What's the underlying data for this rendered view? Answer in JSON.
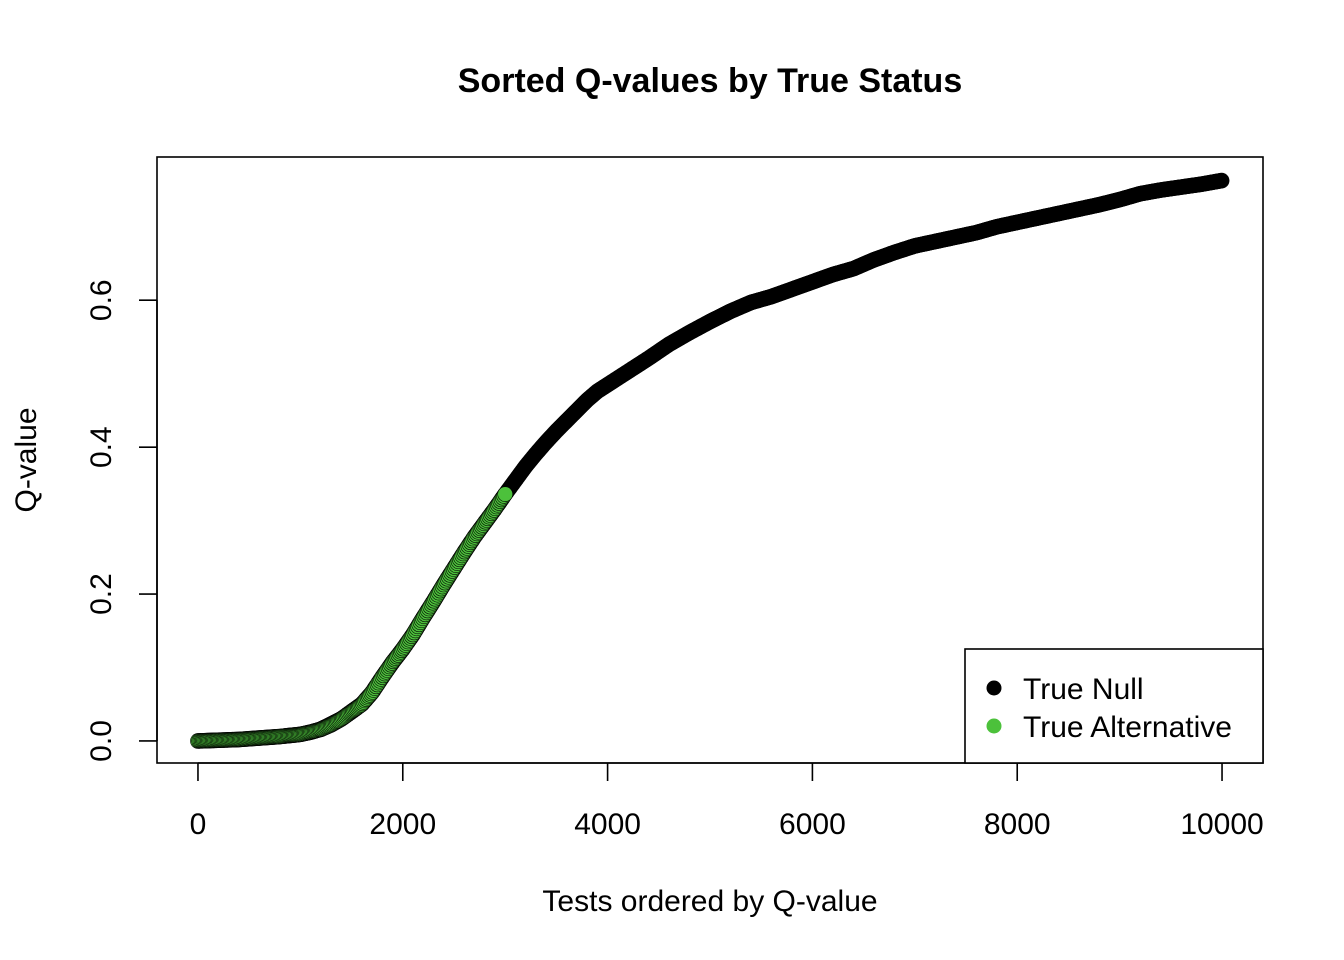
{
  "chart_data": {
    "type": "scatter",
    "title": "Sorted Q-values by True Status",
    "xlabel": "Tests ordered by Q-value",
    "ylabel": "Q-value",
    "xlim": [
      -400,
      10400
    ],
    "ylim": [
      -0.03,
      0.795
    ],
    "x_ticks": [
      0,
      2000,
      4000,
      6000,
      8000,
      10000
    ],
    "x_tick_labels": [
      "0",
      "2000",
      "4000",
      "6000",
      "8000",
      "10000"
    ],
    "y_ticks": [
      0.0,
      0.2,
      0.4,
      0.6
    ],
    "y_tick_labels": [
      "0.0",
      "0.2",
      "0.4",
      "0.6"
    ],
    "grid": false,
    "legend_position": "bottom-right",
    "colors": {
      "true_null": "#000000",
      "true_alternative": "#4cc13b"
    },
    "series": [
      {
        "name": "True Null",
        "color": "#000000",
        "x": [
          1200,
          1400,
          1600,
          1700,
          1800,
          1900,
          2000,
          2100,
          2200,
          2300,
          2400,
          2500,
          2600,
          2700,
          2800,
          2900,
          3000,
          3100,
          3200,
          3300,
          3400,
          3500,
          3600,
          3700,
          3800,
          3900,
          4000,
          4200,
          4400,
          4600,
          4800,
          5000,
          5200,
          5400,
          5600,
          5800,
          6000,
          6200,
          6400,
          6600,
          6800,
          7000,
          7200,
          7400,
          7600,
          7800,
          8000,
          8200,
          8400,
          8600,
          8800,
          9000,
          9200,
          9400,
          9600,
          9800,
          10000
        ],
        "y": [
          0.016,
          0.03,
          0.05,
          0.066,
          0.087,
          0.107,
          0.125,
          0.145,
          0.168,
          0.19,
          0.213,
          0.235,
          0.257,
          0.278,
          0.297,
          0.316,
          0.336,
          0.355,
          0.374,
          0.391,
          0.407,
          0.422,
          0.436,
          0.45,
          0.464,
          0.476,
          0.485,
          0.503,
          0.521,
          0.54,
          0.556,
          0.571,
          0.585,
          0.597,
          0.605,
          0.615,
          0.625,
          0.635,
          0.643,
          0.655,
          0.665,
          0.674,
          0.68,
          0.686,
          0.692,
          0.7,
          0.706,
          0.712,
          0.718,
          0.724,
          0.73,
          0.737,
          0.745,
          0.75,
          0.754,
          0.758,
          0.763
        ]
      },
      {
        "name": "True Alternative",
        "color": "#4cc13b",
        "x": [
          0,
          100,
          200,
          300,
          400,
          500,
          600,
          700,
          800,
          900,
          1000,
          1100,
          1200,
          1300,
          1400,
          1500,
          1600,
          1700,
          1800,
          1900,
          2000,
          2100,
          2200,
          2300,
          2400,
          2500,
          2600,
          2700,
          2800,
          2900,
          3000
        ],
        "y": [
          0.0,
          0.0005,
          0.001,
          0.0015,
          0.002,
          0.003,
          0.004,
          0.005,
          0.006,
          0.0075,
          0.009,
          0.012,
          0.016,
          0.022,
          0.03,
          0.04,
          0.05,
          0.066,
          0.087,
          0.107,
          0.125,
          0.145,
          0.168,
          0.19,
          0.213,
          0.235,
          0.257,
          0.278,
          0.297,
          0.316,
          0.336
        ]
      }
    ]
  }
}
